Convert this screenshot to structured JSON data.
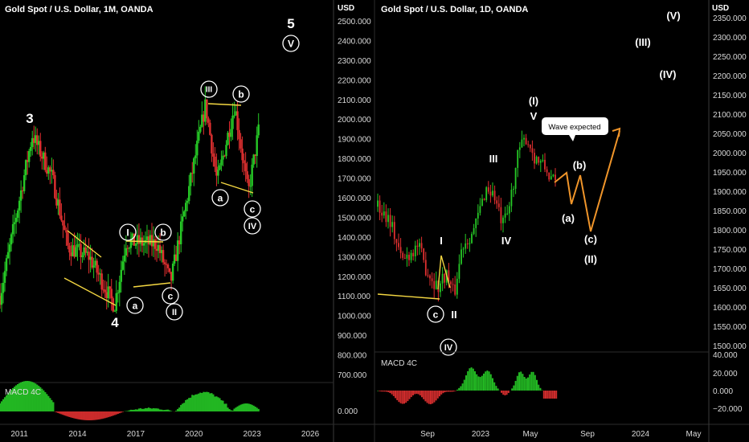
{
  "colors": {
    "bg": "#000000",
    "bull": "#26c926",
    "bear": "#e03030",
    "yellow": "#f5d842",
    "orange": "#f0952a",
    "grid": "#2a2a2a",
    "axis_text": "#d9d9d9",
    "label": "#ffffff"
  },
  "left_chart": {
    "title": "Gold Spot / U.S. Dollar, 1M, OANDA",
    "currency": "USD",
    "macd_label": "MACD 4C",
    "macd_zero": "0.000",
    "y_ticks": [
      "2500.000",
      "2400.000",
      "2300.000",
      "2200.000",
      "2100.000",
      "2000.000",
      "1900.000",
      "1800.000",
      "1700.000",
      "1600.000",
      "1500.000",
      "1400.000",
      "1300.000",
      "1200.000",
      "1100.000",
      "1000.000",
      "900.000",
      "800.000",
      "700.000"
    ],
    "x_ticks": [
      "2011",
      "2014",
      "2017",
      "2020",
      "2023",
      "2026"
    ],
    "wave_labels": {
      "three": "3",
      "four": "4",
      "five": "5",
      "five_circle": "V",
      "i": "I",
      "ii": "II",
      "iii": "III",
      "iv": "IV",
      "a1": "a",
      "b1": "b",
      "c1": "c",
      "a2": "a",
      "b2": "b",
      "c2": "c"
    }
  },
  "right_chart": {
    "title": "Gold Spot / U.S. Dollar, 1D, OANDA",
    "currency": "USD",
    "macd_label": "MACD 4C",
    "callout": "Wave expected",
    "y_ticks": [
      "2350.000",
      "2300.000",
      "2250.000",
      "2200.000",
      "2150.000",
      "2100.000",
      "2050.000",
      "2000.000",
      "1950.000",
      "1900.000",
      "1850.000",
      "1800.000",
      "1750.000",
      "1700.000",
      "1650.000",
      "1600.000",
      "1550.000",
      "1500.000"
    ],
    "macd_ticks": [
      "40.000",
      "20.000",
      "0.000",
      "−20.000"
    ],
    "x_ticks": [
      "Sep",
      "2023",
      "May",
      "Sep",
      "2024",
      "May"
    ],
    "wave_labels": {
      "I": "I",
      "II": "II",
      "III": "III",
      "IV": "IV",
      "V": "V",
      "c": "c",
      "iv_circle": "IV",
      "wave1": "(I)",
      "wave2": "(II)",
      "wave3": "(III)",
      "wave4": "(IV)",
      "wave5": "(V)",
      "a": "(a)",
      "b": "(b)",
      "cc": "(c)"
    }
  },
  "chart_data": [
    {
      "type": "line",
      "title": "Gold Spot / U.S. Dollar, 1M, OANDA",
      "ylabel": "USD",
      "ylim": [
        650,
        2550
      ],
      "series": [
        {
          "x": [
            2010.0,
            2011.67,
            2012.7,
            2013.5,
            2014.6,
            2015.9,
            2016.5,
            2018.1,
            2018.8,
            2020.6,
            2021.2,
            2022.1,
            2022.8,
            2023.4
          ],
          "values": [
            1100,
            1920,
            1700,
            1350,
            1300,
            1050,
            1375,
            1365,
            1170,
            2075,
            1680,
            2070,
            1620,
            1980
          ]
        }
      ]
    },
    {
      "type": "line",
      "title": "Gold Spot / U.S. Dollar, 1D, OANDA",
      "ylabel": "USD",
      "ylim": [
        1480,
        2370
      ],
      "series": [
        {
          "x": [
            "2022-06",
            "2022-07",
            "2022-08",
            "2022-09",
            "2022-11",
            "2023-01",
            "2023-02",
            "2023-03",
            "2023-05",
            "2023-06"
          ],
          "values": [
            1860,
            1700,
            1800,
            1640,
            1620,
            1950,
            1810,
            2010,
            2070,
            1920
          ]
        }
      ]
    }
  ]
}
